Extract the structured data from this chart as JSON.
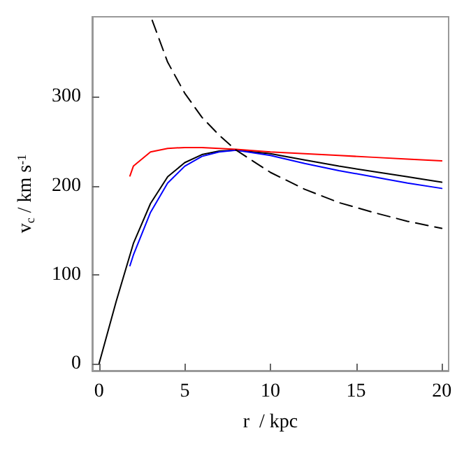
{
  "chart_data": {
    "type": "line",
    "xlabel": "r  / kpc",
    "ylabel": "v$_{c}$ / km s$^{-1}$",
    "xlim": [
      -0.4,
      20.4
    ],
    "ylim": [
      -8,
      390
    ],
    "xticks": [
      0,
      5,
      10,
      15,
      20
    ],
    "yticks": [
      0,
      100,
      200,
      300
    ],
    "grid": false,
    "marker": "none",
    "line_style": "solid",
    "series": [
      {
        "color": "#000000",
        "x": [
          0,
          1,
          2,
          3,
          4,
          5,
          6,
          7,
          8,
          10,
          12,
          14,
          16,
          18,
          20
        ],
        "values": [
          0,
          70,
          135,
          180,
          210,
          226,
          235,
          239,
          240,
          236,
          229,
          222,
          216,
          210,
          204
        ]
      },
      {
        "color": "#0000ff",
        "x": [
          1.8,
          2,
          3,
          4,
          5,
          6,
          7,
          8,
          10,
          12,
          14,
          16,
          18,
          20
        ],
        "values": [
          110,
          122,
          170,
          203,
          222,
          233,
          238,
          240,
          234,
          225,
          217,
          210,
          203,
          197
        ]
      },
      {
        "color": "#ff0000",
        "x": [
          1.8,
          2,
          3,
          4,
          5,
          6,
          8,
          10,
          12,
          14,
          16,
          18,
          20
        ],
        "values": [
          211,
          222,
          238,
          242,
          243,
          243,
          241,
          238,
          236,
          234,
          232,
          230,
          228
        ]
      },
      {
        "color": "#000000",
        "line_style": "dashed",
        "x": [
          3.1,
          4,
          5,
          6,
          7,
          8,
          10,
          12,
          14,
          16,
          18,
          20
        ],
        "values": [
          386,
          339,
          304,
          277,
          257,
          240,
          215,
          196,
          181,
          170,
          160,
          152
        ]
      }
    ]
  }
}
